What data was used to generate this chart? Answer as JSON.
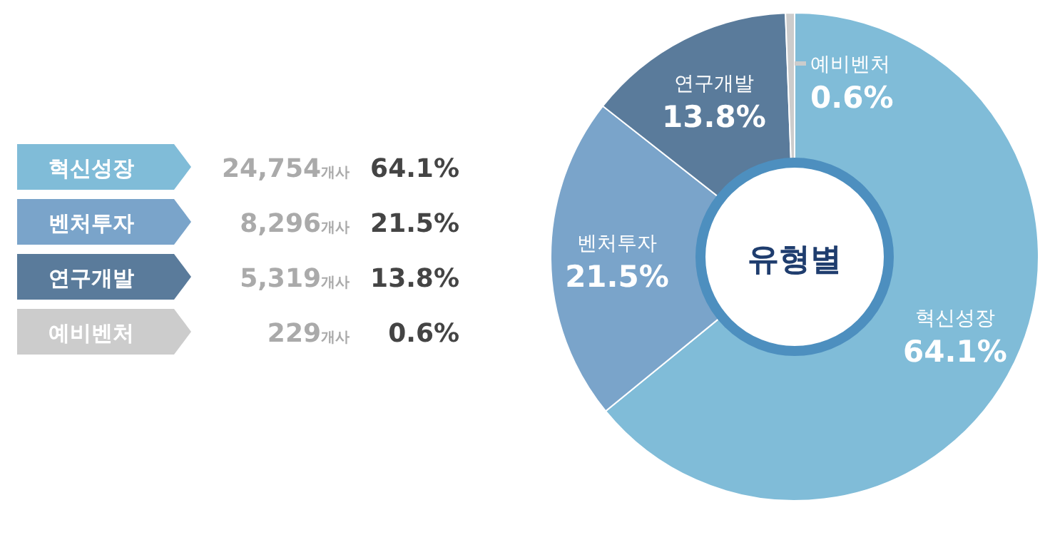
{
  "chart_data": {
    "type": "donut",
    "title": "유형별",
    "categories": [
      "혁신성장",
      "벤처투자",
      "연구개발",
      "예비벤처"
    ],
    "values": [
      64.1,
      21.5,
      13.8,
      0.6
    ],
    "colors": [
      "#80bcd8",
      "#7aa4ca",
      "#5a7b9b",
      "#cccccc"
    ],
    "value_labels": [
      "64.1%",
      "21.5%",
      "13.8%",
      "0.6%"
    ],
    "annotations": [
      "24,754개사",
      "8,296개사",
      "5,319개사",
      "229개사"
    ]
  }
}
